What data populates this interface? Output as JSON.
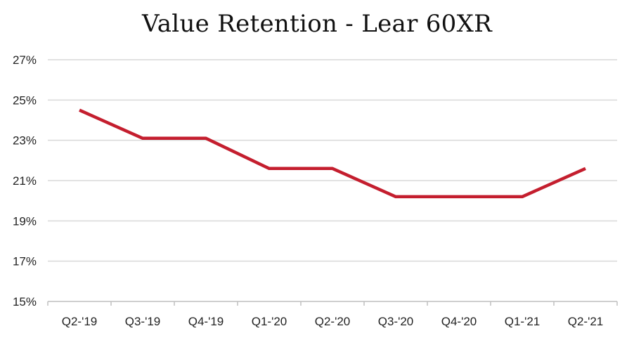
{
  "chart_data": {
    "type": "line",
    "title": "Value Retention - Lear 60XR",
    "xlabel": "",
    "ylabel": "",
    "categories": [
      "Q2-'19",
      "Q3-'19",
      "Q4-'19",
      "Q1-'20",
      "Q2-'20",
      "Q3-'20",
      "Q4-'20",
      "Q1-'21",
      "Q2-'21"
    ],
    "series": [
      {
        "values": [
          24.5,
          23.1,
          23.1,
          21.6,
          21.6,
          20.2,
          20.2,
          20.2,
          21.6
        ]
      }
    ],
    "ylim": [
      15,
      27
    ],
    "yticks": [
      15,
      17,
      19,
      21,
      23,
      25,
      27
    ],
    "ytick_labels": [
      "15%",
      "17%",
      "19%",
      "21%",
      "23%",
      "25%",
      "27%"
    ],
    "grid": true,
    "legend": "none",
    "line_color": "#c41e2e",
    "grid_color": "#d9d9d9",
    "axis_color": "#bfbfbf"
  }
}
